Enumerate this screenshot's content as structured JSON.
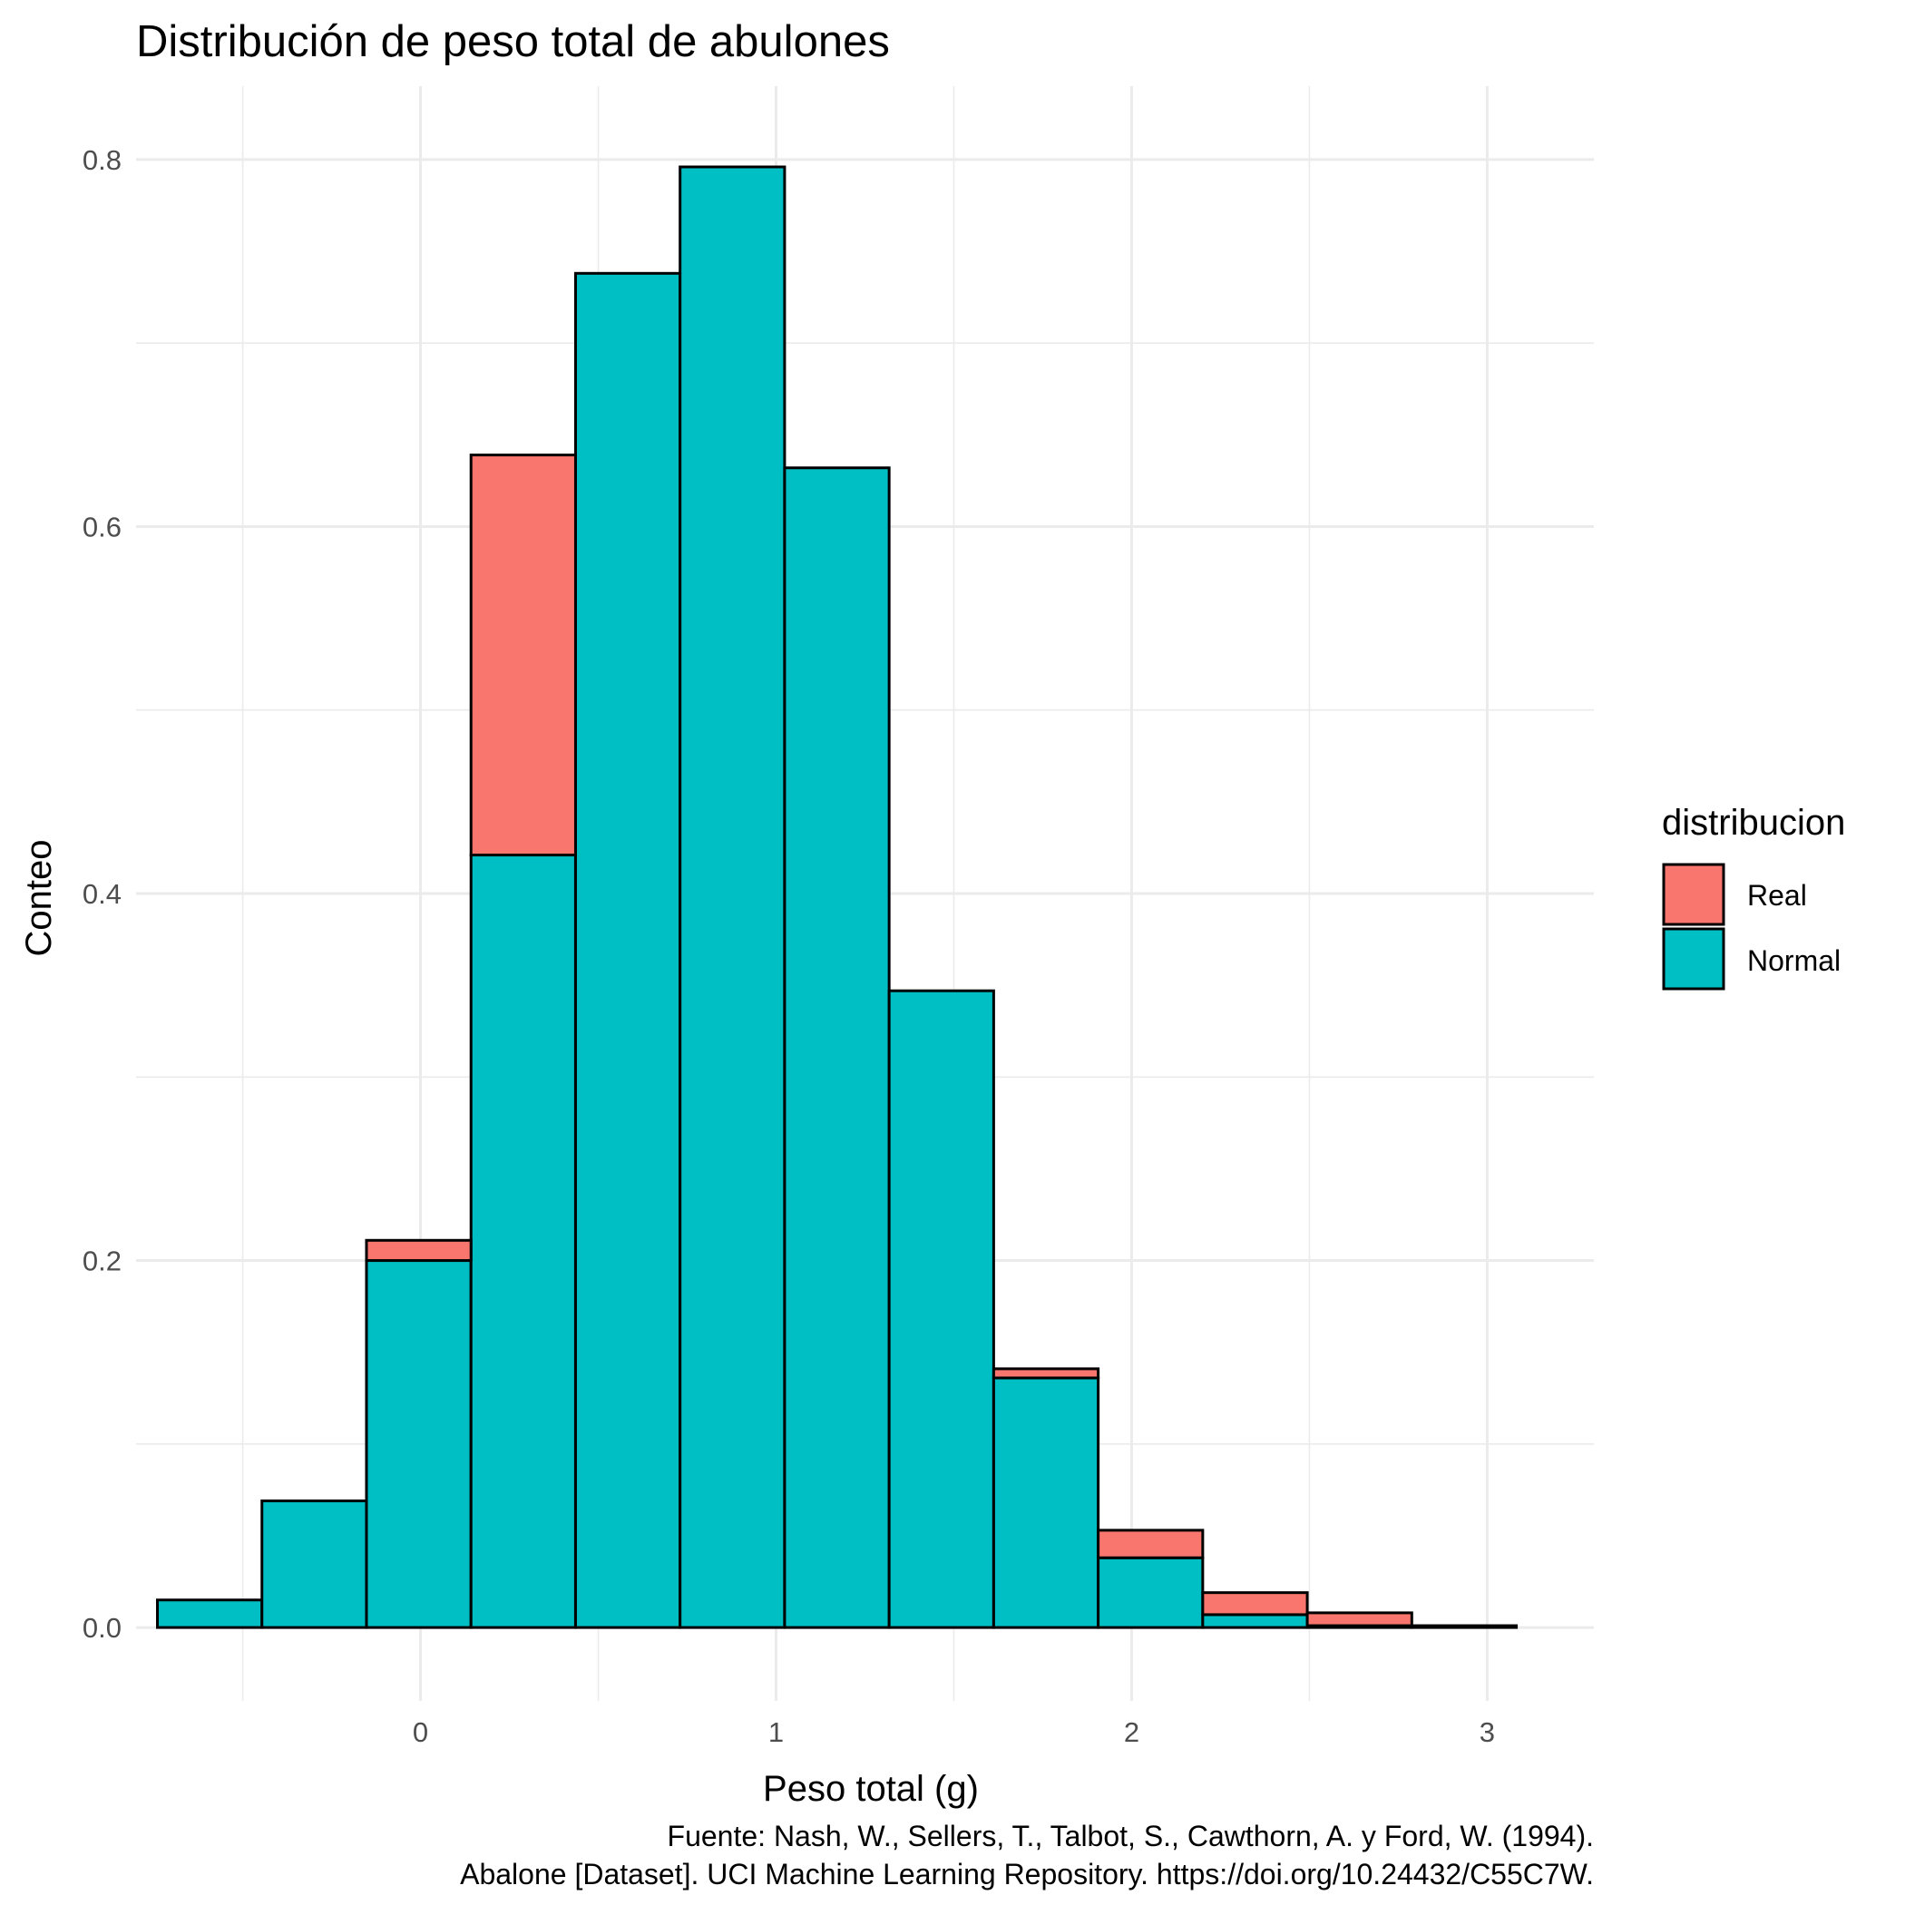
{
  "chart_data": {
    "type": "bar",
    "subtype": "stacked-histogram",
    "title": "Distribución de peso total de abulones",
    "xlabel": "Peso total (g)",
    "ylabel": "Conteo",
    "xlim": [
      -0.8,
      3.3
    ],
    "ylim": [
      -0.04,
      0.84
    ],
    "x_ticks": [
      0,
      1,
      2,
      3
    ],
    "x_tick_labels": [
      "0",
      "1",
      "2",
      "3"
    ],
    "y_ticks": [
      0.0,
      0.2,
      0.4,
      0.6,
      0.8
    ],
    "y_tick_labels": [
      "0.0",
      "0.2",
      "0.4",
      "0.6",
      "0.8"
    ],
    "grid": true,
    "legend": {
      "title": "distribucion",
      "position": "right",
      "entries": [
        {
          "label": "Real",
          "color": "#F8766D"
        },
        {
          "label": "Normal",
          "color": "#00BFC4"
        }
      ]
    },
    "bin_edges": [
      -0.74,
      -0.446,
      -0.152,
      0.142,
      0.436,
      0.73,
      1.024,
      1.318,
      1.612,
      1.906,
      2.2,
      2.494,
      2.788,
      3.082
    ],
    "series": [
      {
        "name": "Normal",
        "color": "#00BFC4",
        "values": [
          0.015,
          0.069,
          0.2,
          0.421,
          0.738,
          0.796,
          0.632,
          0.347,
          0.136,
          0.038,
          0.007,
          0.001,
          0.0
        ]
      },
      {
        "name": "Real",
        "color": "#F8766D",
        "values": [
          0.0,
          0.0,
          0.011,
          0.218,
          0.0,
          0.0,
          0.0,
          0.0,
          0.005,
          0.015,
          0.012,
          0.007,
          0.001
        ]
      }
    ],
    "caption": [
      "Fuente: Nash, W., Sellers, T., Talbot, S., Cawthorn, A. y Ford, W. (1994).",
      "Abalone [Dataset]. UCI Machine Learning Repository. https://doi.org/10.24432/C55C7W."
    ]
  }
}
